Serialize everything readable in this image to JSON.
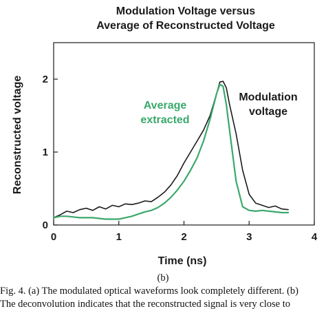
{
  "chart_data": {
    "type": "line",
    "title_lines": [
      "Modulation Voltage versus",
      "Average of Reconstructed Voltage"
    ],
    "xlabel": "Time (ns)",
    "ylabel": "Reconstructed voltage",
    "xlim": [
      0,
      4
    ],
    "ylim": [
      0,
      2.5
    ],
    "x_ticks": [
      "0",
      "1",
      "2",
      "3",
      "4"
    ],
    "y_ticks": [
      "0",
      "1",
      "2"
    ],
    "grid": false,
    "series": [
      {
        "name": "Modulation voltage",
        "label_lines": [
          "Modulation",
          "voltage"
        ],
        "color": "#1a1a1a",
        "x": [
          0.0,
          0.1,
          0.2,
          0.3,
          0.4,
          0.5,
          0.6,
          0.7,
          0.8,
          0.9,
          1.0,
          1.1,
          1.2,
          1.3,
          1.4,
          1.5,
          1.6,
          1.7,
          1.8,
          1.9,
          2.0,
          2.1,
          2.2,
          2.3,
          2.4,
          2.5,
          2.55,
          2.6,
          2.65,
          2.7,
          2.8,
          2.9,
          3.0,
          3.1,
          3.2,
          3.3,
          3.4,
          3.5,
          3.6
        ],
        "y": [
          0.1,
          0.14,
          0.19,
          0.17,
          0.21,
          0.23,
          0.2,
          0.25,
          0.22,
          0.27,
          0.25,
          0.29,
          0.28,
          0.3,
          0.33,
          0.32,
          0.38,
          0.45,
          0.55,
          0.68,
          0.85,
          1.0,
          1.15,
          1.3,
          1.5,
          1.8,
          1.96,
          1.97,
          1.88,
          1.65,
          1.25,
          0.75,
          0.42,
          0.3,
          0.27,
          0.24,
          0.26,
          0.22,
          0.21
        ]
      },
      {
        "name": "Average extracted",
        "label_lines": [
          "Average",
          "extracted"
        ],
        "color": "#3aa86b",
        "x": [
          0.0,
          0.1,
          0.2,
          0.3,
          0.4,
          0.5,
          0.6,
          0.7,
          0.8,
          0.9,
          1.0,
          1.1,
          1.2,
          1.3,
          1.4,
          1.5,
          1.6,
          1.7,
          1.8,
          1.9,
          2.0,
          2.1,
          2.2,
          2.3,
          2.4,
          2.5,
          2.55,
          2.6,
          2.65,
          2.7,
          2.8,
          2.9,
          3.0,
          3.1,
          3.2,
          3.3,
          3.4,
          3.5,
          3.6
        ],
        "y": [
          0.1,
          0.12,
          0.12,
          0.11,
          0.1,
          0.1,
          0.1,
          0.09,
          0.08,
          0.08,
          0.08,
          0.1,
          0.12,
          0.15,
          0.18,
          0.2,
          0.24,
          0.3,
          0.38,
          0.48,
          0.6,
          0.75,
          0.92,
          1.15,
          1.45,
          1.8,
          1.93,
          1.9,
          1.65,
          1.3,
          0.6,
          0.25,
          0.2,
          0.19,
          0.2,
          0.19,
          0.18,
          0.17,
          0.17
        ]
      }
    ]
  },
  "caption": {
    "panel": "(b)",
    "lines": [
      "Fig. 4. (a) The modulated optical waveforms look completely different. (b)",
      "The deconvolution indicates that the reconstructed signal is very close to"
    ]
  }
}
